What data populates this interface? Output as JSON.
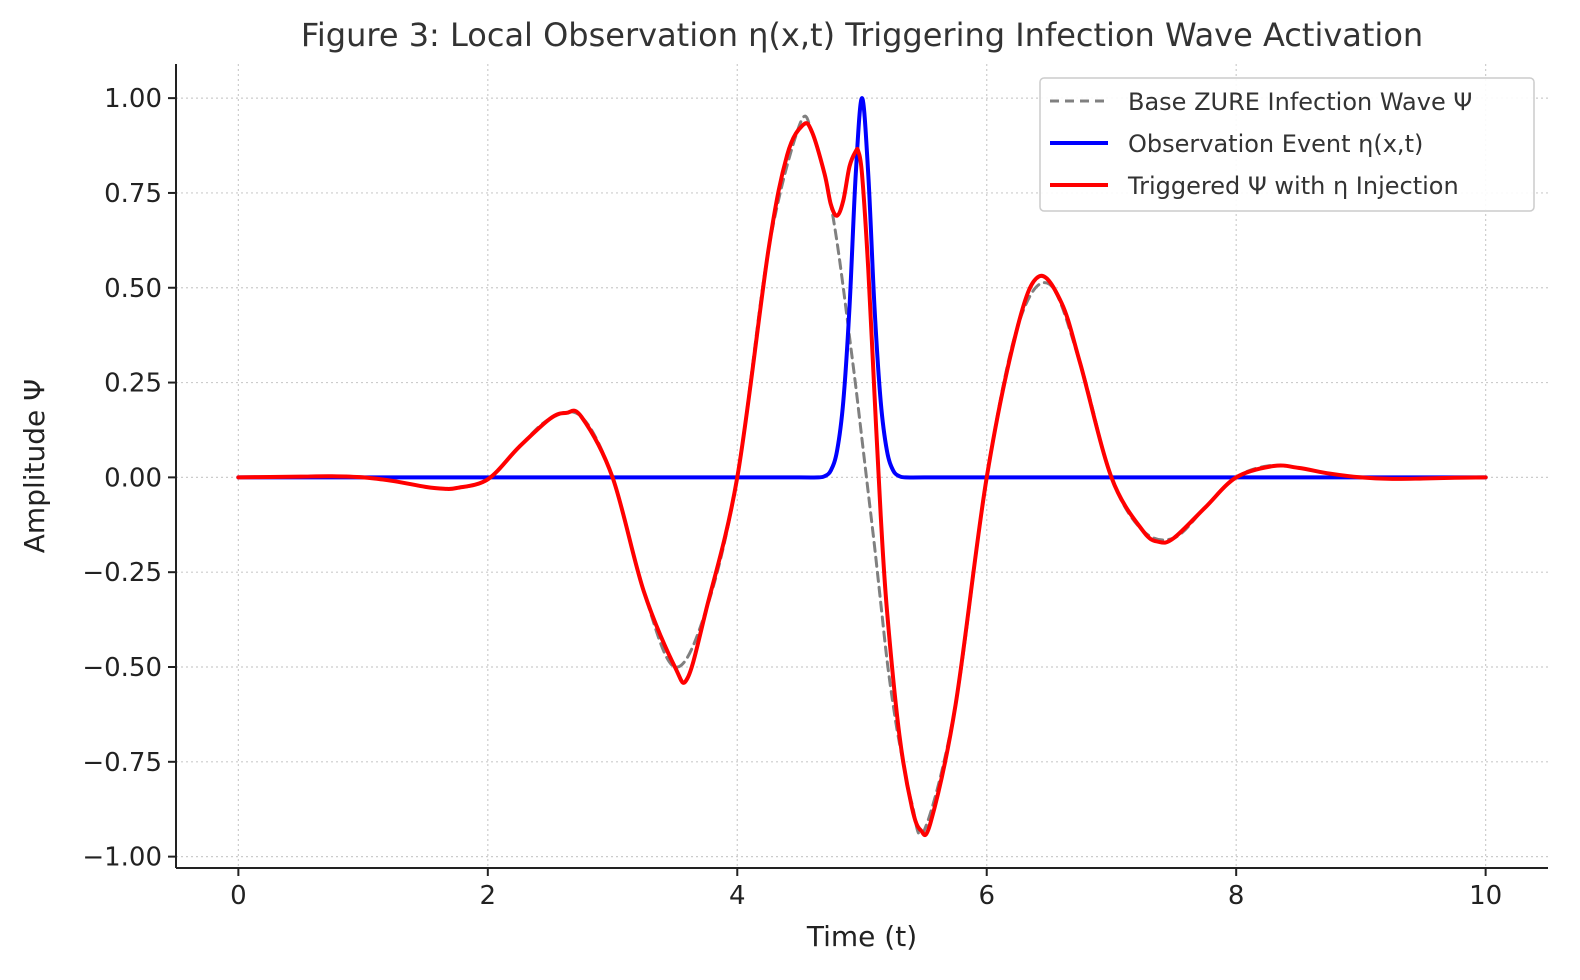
{
  "chart_data": {
    "type": "line",
    "title": "Figure 3: Local Observation η(x,t) Triggering Infection Wave Activation",
    "xlabel": "Time (t)",
    "ylabel": "Amplitude Ψ",
    "xlim": [
      -0.5,
      10.5
    ],
    "ylim": [
      -1.03,
      1.09
    ],
    "x_ticks": [
      0,
      2,
      4,
      6,
      8,
      10
    ],
    "x_tick_labels": [
      "0",
      "2",
      "4",
      "6",
      "8",
      "10"
    ],
    "y_ticks": [
      1.0,
      0.75,
      0.5,
      0.25,
      0.0,
      -0.25,
      -0.5,
      -0.75,
      -1.0
    ],
    "y_tick_labels": [
      "1.00",
      "0.75",
      "0.50",
      "0.25",
      "0.00",
      "−0.25",
      "−0.50",
      "−0.75",
      "−1.00"
    ],
    "grid": true,
    "legend_position": "top-right",
    "series": [
      {
        "name": "Base ZURE Infection Wave Ψ",
        "color": "#808080",
        "style": "dashed",
        "x": [
          0,
          0.25,
          0.5,
          0.75,
          1.0,
          1.25,
          1.5,
          1.75,
          2.0,
          2.25,
          2.5,
          2.75,
          3.0,
          3.25,
          3.5,
          3.75,
          4.0,
          4.25,
          4.5,
          4.6,
          4.7,
          4.75,
          4.8,
          4.85,
          4.9,
          4.95,
          5.0,
          5.05,
          5.1,
          5.15,
          5.2,
          5.25,
          5.3,
          5.4,
          5.5,
          5.75,
          6.0,
          6.25,
          6.5,
          6.75,
          7.0,
          7.25,
          7.5,
          7.75,
          8.0,
          8.25,
          8.5,
          8.75,
          9.0,
          9.25,
          9.5,
          9.75,
          10.0
        ],
        "y": [
          0.0,
          0.0,
          0.002,
          0.003,
          0.0,
          -0.01,
          -0.025,
          -0.028,
          -0.005,
          0.08,
          0.155,
          0.16,
          0.0,
          -0.3,
          -0.5,
          -0.35,
          0.0,
          0.6,
          0.93,
          0.91,
          0.8,
          0.72,
          0.62,
          0.5,
          0.37,
          0.24,
          0.1,
          -0.04,
          -0.18,
          -0.33,
          -0.48,
          -0.6,
          -0.7,
          -0.86,
          -0.93,
          -0.6,
          0.0,
          0.4,
          0.51,
          0.3,
          0.0,
          -0.14,
          -0.16,
          -0.08,
          0.0,
          0.03,
          0.025,
          0.01,
          0.0,
          -0.004,
          -0.003,
          -0.001,
          0.0
        ]
      },
      {
        "name": "Observation Event η(x,t)",
        "color": "#0000ff",
        "style": "solid",
        "x": [
          0,
          1,
          2,
          3,
          4,
          4.5,
          4.65,
          4.7,
          4.75,
          4.8,
          4.85,
          4.9,
          4.95,
          5.0,
          5.05,
          5.1,
          5.15,
          5.2,
          5.25,
          5.3,
          5.35,
          5.5,
          6,
          7,
          8,
          9,
          10
        ],
        "y": [
          0,
          0,
          0,
          0,
          0,
          0,
          0.0,
          0.003,
          0.018,
          0.07,
          0.2,
          0.45,
          0.8,
          1.0,
          0.8,
          0.45,
          0.2,
          0.07,
          0.018,
          0.003,
          0.0,
          0,
          0,
          0,
          0,
          0,
          0
        ]
      },
      {
        "name": "Triggered Ψ with η Injection",
        "color": "#ff0000",
        "style": "solid",
        "x": [
          0,
          0.25,
          0.5,
          0.75,
          1.0,
          1.25,
          1.5,
          1.65,
          1.75,
          2.0,
          2.25,
          2.5,
          2.63,
          2.75,
          3.0,
          3.25,
          3.5,
          3.6,
          3.75,
          4.0,
          4.25,
          4.4,
          4.53,
          4.6,
          4.7,
          4.75,
          4.8,
          4.85,
          4.9,
          4.95,
          4.97,
          5.0,
          5.05,
          5.1,
          5.15,
          5.2,
          5.3,
          5.4,
          5.47,
          5.55,
          5.75,
          6.0,
          6.25,
          6.42,
          6.6,
          6.75,
          7.0,
          7.25,
          7.38,
          7.5,
          7.75,
          8.0,
          8.3,
          8.5,
          8.75,
          9.0,
          9.25,
          9.5,
          9.75,
          10.0
        ],
        "y": [
          0.0,
          0.001,
          0.002,
          0.003,
          0.0,
          -0.01,
          -0.025,
          -0.03,
          -0.028,
          -0.005,
          0.08,
          0.155,
          0.17,
          0.16,
          0.0,
          -0.3,
          -0.5,
          -0.53,
          -0.35,
          0.0,
          0.6,
          0.85,
          0.93,
          0.91,
          0.8,
          0.72,
          0.69,
          0.73,
          0.82,
          0.86,
          0.86,
          0.8,
          0.55,
          0.22,
          -0.1,
          -0.35,
          -0.68,
          -0.87,
          -0.93,
          -0.91,
          -0.6,
          0.0,
          0.4,
          0.53,
          0.46,
          0.3,
          0.0,
          -0.14,
          -0.17,
          -0.16,
          -0.08,
          0.0,
          0.03,
          0.025,
          0.01,
          0.0,
          -0.004,
          -0.003,
          -0.001,
          0.0
        ]
      }
    ]
  }
}
